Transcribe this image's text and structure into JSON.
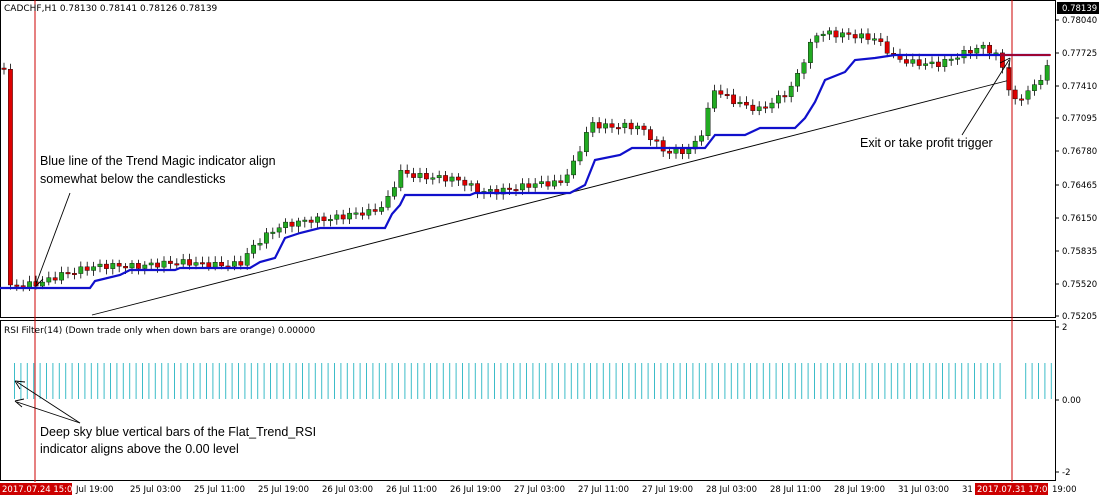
{
  "main_pane": {
    "title": "CADCHF,H1  0.78130 0.78141 0.78126 0.78139",
    "price_labels": [
      "0.78040",
      "0.77725",
      "0.77410",
      "0.77095",
      "0.76780",
      "0.76465",
      "0.76150",
      "0.75835",
      "0.75520",
      "0.75205"
    ],
    "current_price": "0.78139",
    "colors": {
      "bull": "#22aa22",
      "bear": "#dd0000",
      "trend_magic": "#1010cc",
      "marker": "#cc0000",
      "current_price_bg": "#000000"
    }
  },
  "sub_pane": {
    "title": "RSI Filter(14)  (Down trade only when down bars are orange) 0.00000",
    "labels": [
      "2",
      "0.00",
      "-2"
    ],
    "bar_color": "#3cbcc8"
  },
  "time_axis": {
    "labels": [
      "Jul 19:00",
      "25 Jul 03:00",
      "25 Jul 11:00",
      "25 Jul 19:00",
      "26 Jul 03:00",
      "26 Jul 11:00",
      "26 Jul 19:00",
      "27 Jul 03:00",
      "27 Jul 11:00",
      "27 Jul 19:00",
      "28 Jul 03:00",
      "28 Jul 11:00",
      "28 Jul 19:00",
      "31 Jul 03:00",
      "31",
      "19:00"
    ],
    "marker_left": "2017.07.24 15:00",
    "marker_right": "2017.07.31 17:00"
  },
  "annotations": {
    "trend_magic_l1": "Blue line of the Trend Magic indicator align",
    "trend_magic_l2": "somewhat below the candlesticks",
    "exit_trigger": "Exit or take profit trigger",
    "flat_trend_l1": "Deep sky blue vertical bars of the Flat_Trend_RSI",
    "flat_trend_l2": "indicator aligns above the 0.00 level"
  }
}
